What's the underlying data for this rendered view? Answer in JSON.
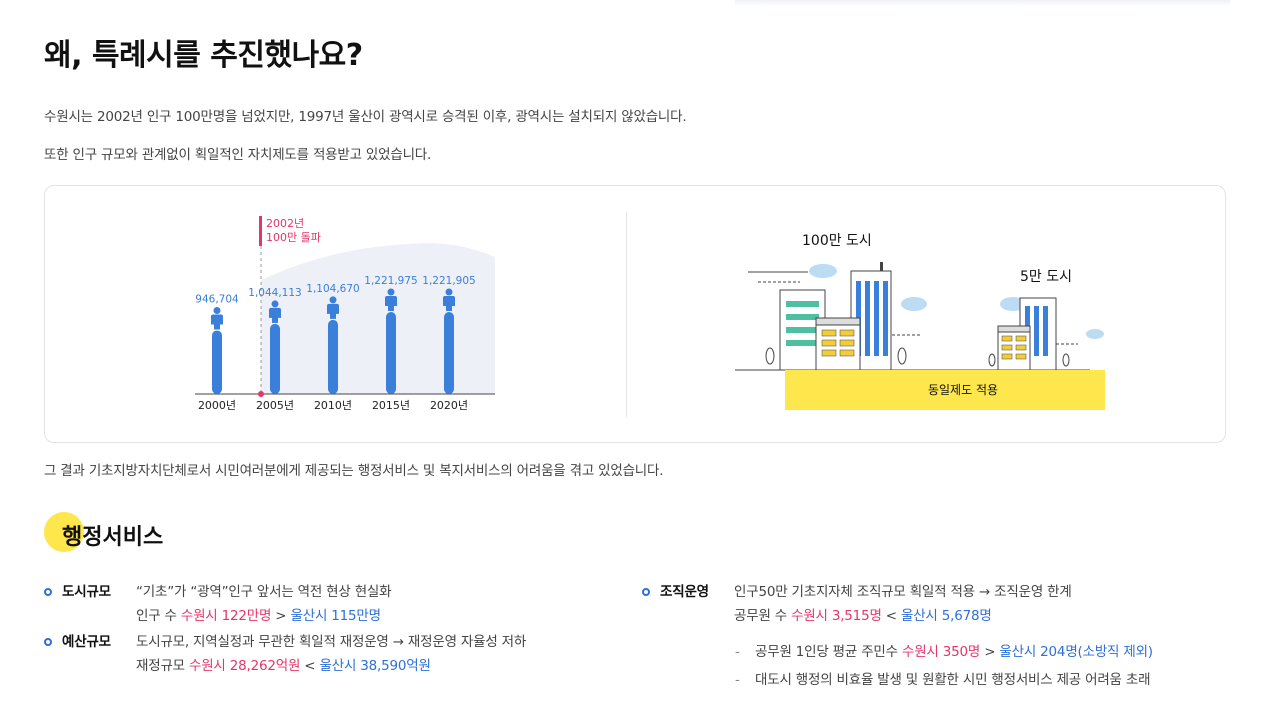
{
  "page": {
    "title": "왜, 특례시를 추진했나요?",
    "intro_line1": "수원시는 2002년 인구 100만명을 넘었지만, 1997년 울산이 광역시로 승격된 이후, 광역시는 설치되지 않았습니다.",
    "intro_line2": "또한 인구 규모와 관계없이 획일적인 자치제도를 적용받고 있었습니다.",
    "result": "그 결과 기초지방자치단체로서 시민여러분에게 제공되는 행정서비스 및 복지서비스의 어려움을 겪고 있었습니다."
  },
  "chart_data": {
    "type": "bar",
    "categories": [
      "2000년",
      "2005년",
      "2010년",
      "2015년",
      "2020년"
    ],
    "values": [
      946704,
      1044113,
      1104670,
      1221975,
      1221905
    ],
    "labels": [
      "946,704",
      "1,044,113",
      "1,104,670",
      "1,221,975",
      "1,221,905"
    ],
    "annotation": {
      "line1": "2002년",
      "line2": "100만 돌파"
    },
    "colors": {
      "bar": "#3a7fd9",
      "annotation": "#e5356b",
      "area": "#eef0f7"
    }
  },
  "city_compare": {
    "big_label": "100만 도시",
    "small_label": "5만 도시",
    "ground_label": "동일제도 적용",
    "ground_color": "#fde74c"
  },
  "admin": {
    "title": "행정서비스",
    "items": [
      {
        "label": "도시규모",
        "line1": "“기초”가 “광역”인구 앞서는 역전 현상 현실화",
        "line2_pre": "인구 수 ",
        "line2_red": "수원시 122만명",
        "line2_op": " > ",
        "line2_blue": "울산시 115만명"
      },
      {
        "label": "예산규모",
        "line1": "도시규모, 지역실정과 무관한 획일적 재정운영 → 재정운영 자율성 저하",
        "line2_pre": "재정규모 ",
        "line2_red": "수원시 28,262억원",
        "line2_op": " < ",
        "line2_blue": "울산시 38,590억원"
      },
      {
        "label": "조직운영",
        "line1": "인구50만 기초지자체 조직규모 획일적 적용 → 조직운영 한계",
        "line2_pre": "공무원 수 ",
        "line2_red": "수원시 3,515명",
        "line2_op": " < ",
        "line2_blue": "울산시 5,678명",
        "sub1_pre": "공무원 1인당 평균 주민수 ",
        "sub1_red": "수원시 350명",
        "sub1_op": " > ",
        "sub1_blue": "울산시 204명(소방직 제외)",
        "sub2": "대도시 행정의 비효율 발생 및 원활한 시민 행정서비스 제공 어려움 초래",
        "dash": "-"
      }
    ]
  }
}
